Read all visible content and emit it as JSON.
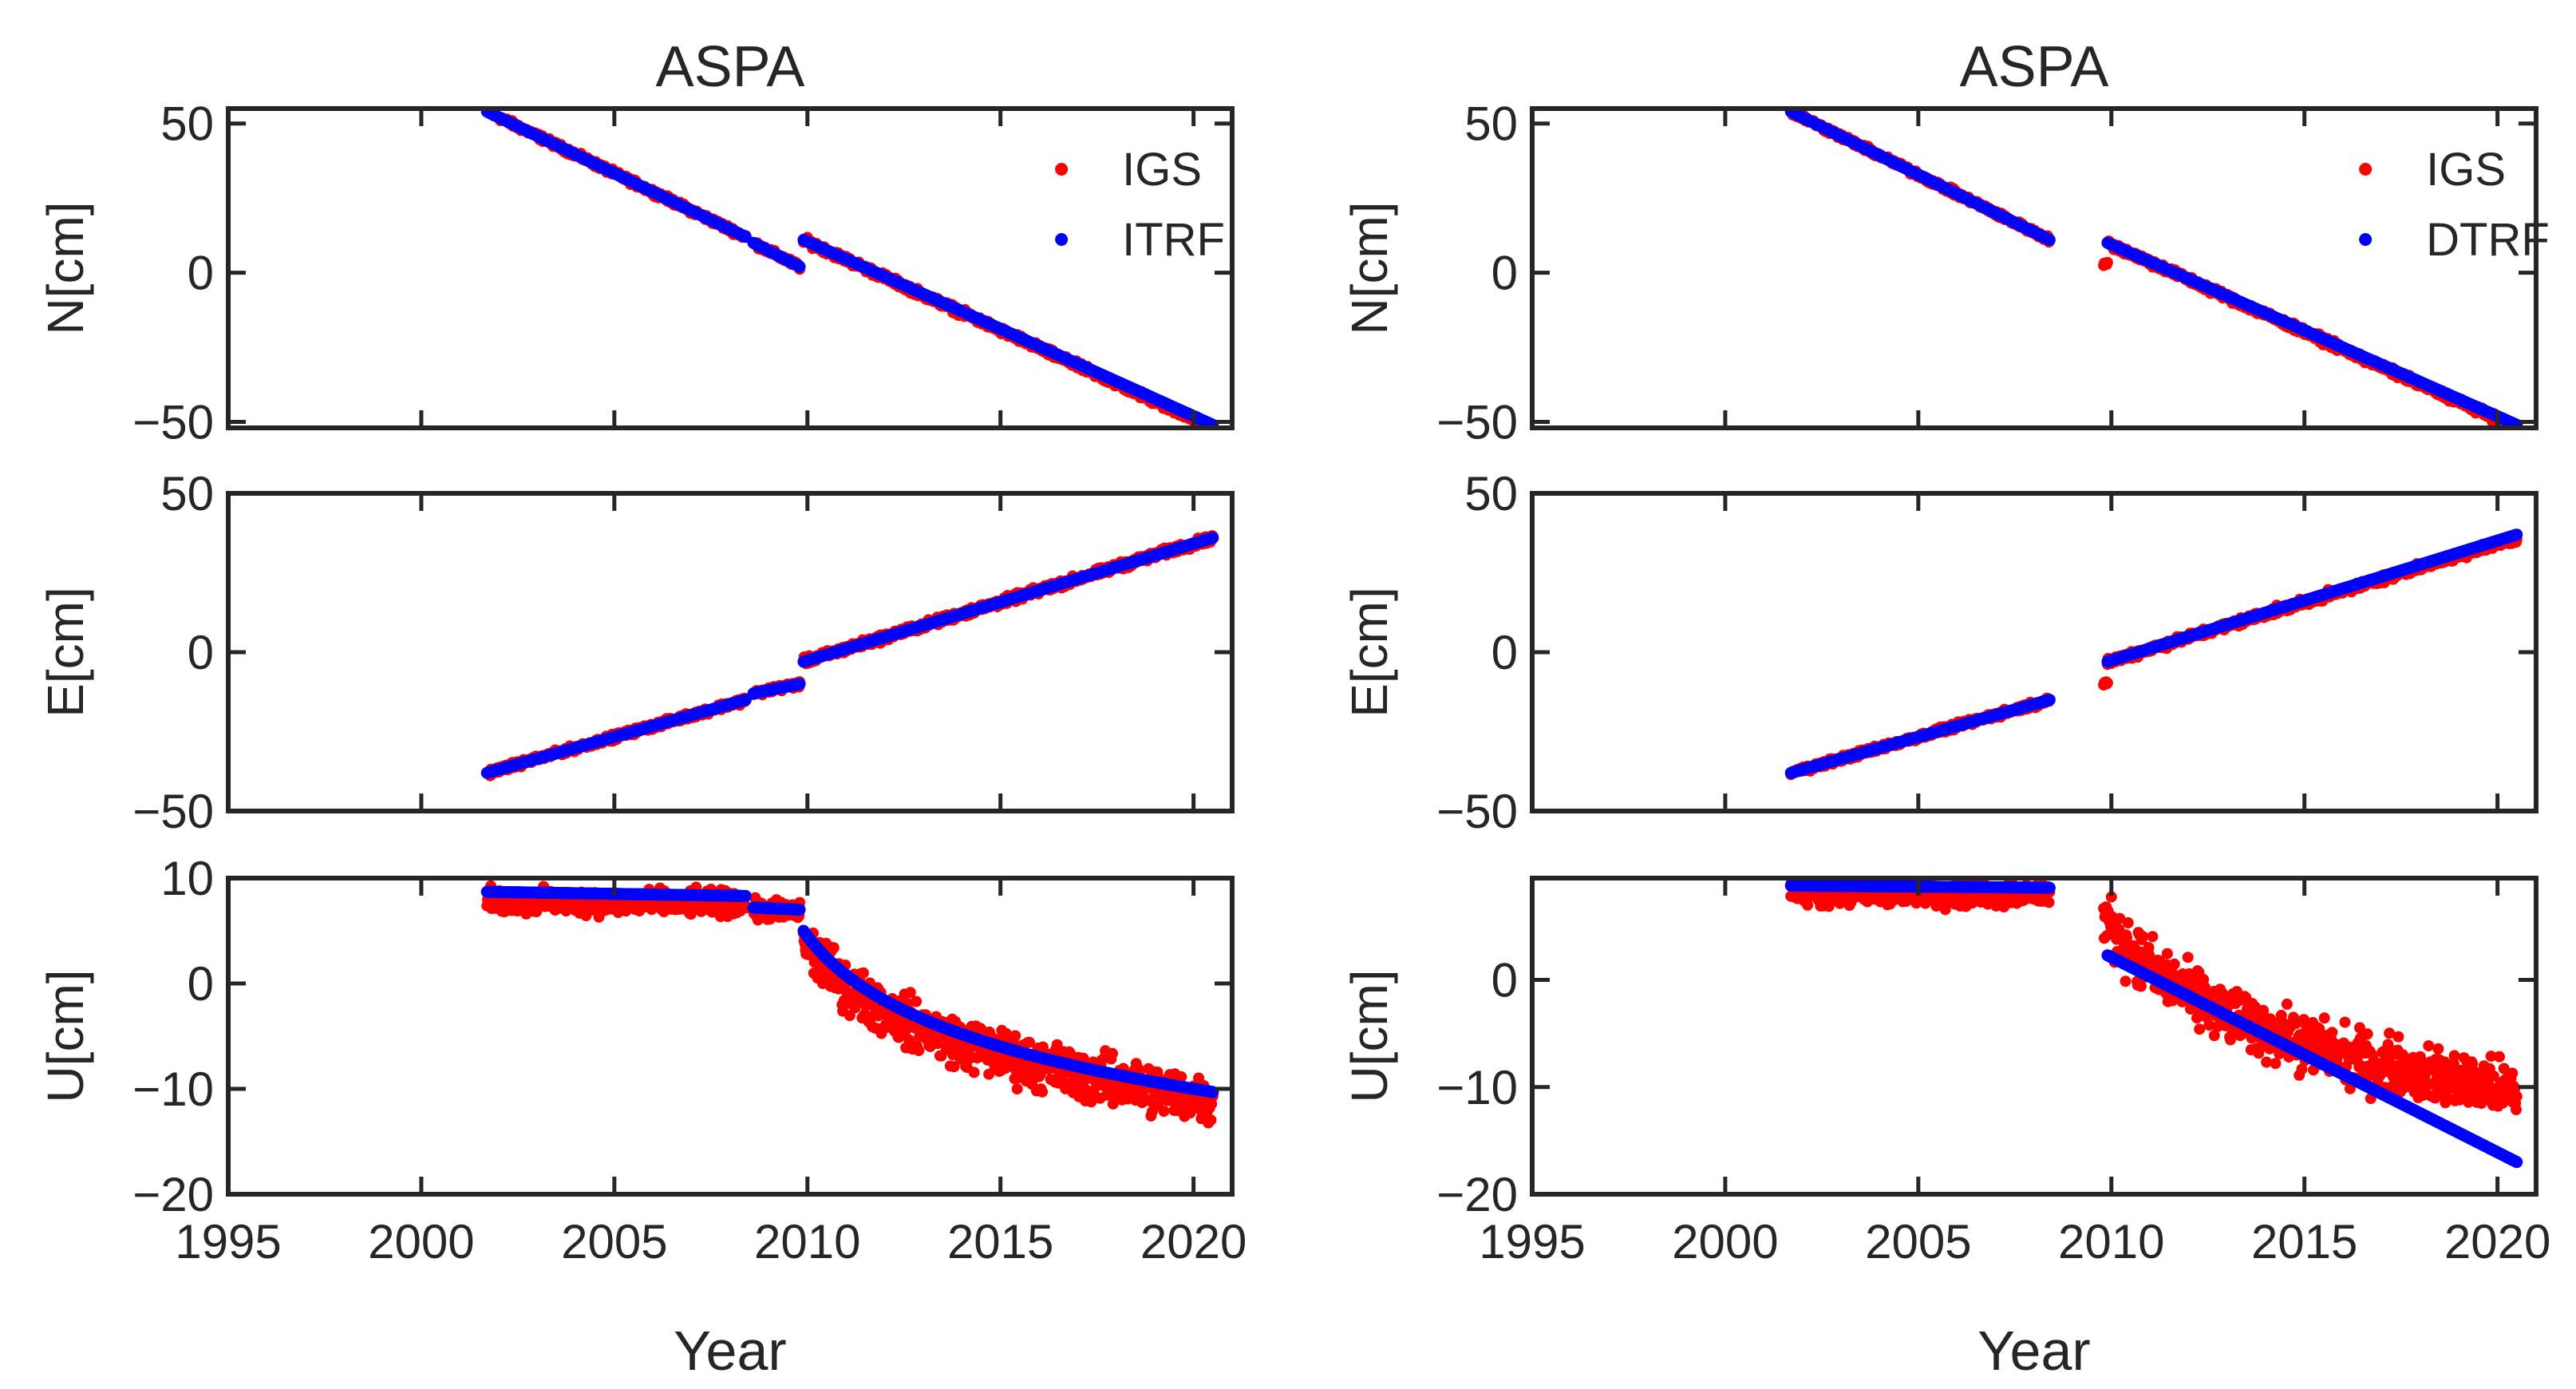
{
  "chart_data": [
    {
      "type": "scatter",
      "title": "ASPA",
      "xlabel": "Year",
      "xlim": [
        1995,
        2021
      ],
      "xticks": [
        "1995",
        "2000",
        "2005",
        "2010",
        "2015",
        "2020"
      ],
      "legend": {
        "position": "top-right",
        "entries": [
          "IGS",
          "ITRF"
        ]
      },
      "colors": {
        "IGS": "#ff0000",
        "ITRF": "#0000ff"
      },
      "subplots": [
        {
          "ylabel": "N[cm]",
          "ylim": [
            -52,
            55
          ],
          "yticks": [
            "50",
            "0",
            "−50"
          ],
          "ytick_values": [
            50,
            0,
            -50
          ],
          "series": [
            {
              "name": "IGS",
              "segments": [
                {
                  "x": [
                    2001.7,
                    2008.4
                  ],
                  "y": [
                    54,
                    12
                  ],
                  "noise": 0.8
                },
                {
                  "x": [
                    2008.6,
                    2009.8
                  ],
                  "y": [
                    10,
                    2
                  ],
                  "noise": 0.8
                },
                {
                  "x": [
                    2009.9,
                    2020.5
                  ],
                  "y": [
                    11,
                    -52
                  ],
                  "noise": 1.0
                }
              ]
            },
            {
              "name": "ITRF",
              "segments": [
                {
                  "x": [
                    2001.7,
                    2008.4
                  ],
                  "y": [
                    54,
                    12
                  ],
                  "noise": 0
                },
                {
                  "x": [
                    2008.6,
                    2009.8
                  ],
                  "y": [
                    10,
                    2
                  ],
                  "noise": 0
                },
                {
                  "x": [
                    2009.9,
                    2020.5
                  ],
                  "y": [
                    11,
                    -51
                  ],
                  "noise": 0
                }
              ]
            }
          ]
        },
        {
          "ylabel": "E[cm]",
          "ylim": [
            -50,
            50
          ],
          "yticks": [
            "50",
            "0",
            "−50"
          ],
          "ytick_values": [
            50,
            0,
            -50
          ],
          "series": [
            {
              "name": "IGS",
              "segments": [
                {
                  "x": [
                    2001.7,
                    2008.4
                  ],
                  "y": [
                    -38,
                    -15
                  ],
                  "noise": 0.8
                },
                {
                  "x": [
                    2008.6,
                    2009.8
                  ],
                  "y": [
                    -13,
                    -10
                  ],
                  "noise": 0.8
                },
                {
                  "x": [
                    2009.9,
                    2020.5
                  ],
                  "y": [
                    -3,
                    36
                  ],
                  "noise": 1.0
                }
              ]
            },
            {
              "name": "ITRF",
              "segments": [
                {
                  "x": [
                    2001.7,
                    2008.4
                  ],
                  "y": [
                    -38,
                    -15
                  ],
                  "noise": 0
                },
                {
                  "x": [
                    2008.6,
                    2009.8
                  ],
                  "y": [
                    -13,
                    -10
                  ],
                  "noise": 0
                },
                {
                  "x": [
                    2009.9,
                    2020.5
                  ],
                  "y": [
                    -3,
                    36
                  ],
                  "noise": 0
                }
              ]
            }
          ]
        },
        {
          "ylabel": "U[cm]",
          "ylim": [
            -20,
            10
          ],
          "yticks": [
            "10",
            "0",
            "−10",
            "−20"
          ],
          "ytick_values": [
            10,
            0,
            -10,
            -20
          ],
          "series": [
            {
              "name": "IGS",
              "segments": [
                {
                  "x": [
                    2001.7,
                    2008.4
                  ],
                  "y": [
                    7.8,
                    7.6
                  ],
                  "noise": 1.0
                },
                {
                  "x": [
                    2008.6,
                    2009.8
                  ],
                  "y": [
                    7,
                    6.8
                  ],
                  "noise": 0.8
                },
                {
                  "x": [
                    2009.9,
                    2020.5
                  ],
                  "y": [
                    4,
                    -11
                  ],
                  "curve": "log",
                  "noise": 2.0
                }
              ]
            },
            {
              "name": "ITRF",
              "segments": [
                {
                  "x": [
                    2001.7,
                    2008.4
                  ],
                  "y": [
                    8.7,
                    8.3
                  ],
                  "noise": 0
                },
                {
                  "x": [
                    2008.6,
                    2009.8
                  ],
                  "y": [
                    7.2,
                    7.0
                  ],
                  "noise": 0
                },
                {
                  "x": [
                    2009.9,
                    2020.5
                  ],
                  "y": [
                    5,
                    -10.3
                  ],
                  "curve": "log",
                  "noise": 0
                }
              ]
            }
          ]
        }
      ]
    },
    {
      "type": "scatter",
      "title": "ASPA",
      "xlabel": "Year",
      "xlim": [
        1995,
        2021
      ],
      "xticks": [
        "1995",
        "2000",
        "2005",
        "2010",
        "2015",
        "2020"
      ],
      "legend": {
        "position": "top-right",
        "entries": [
          "IGS",
          "DTRF"
        ]
      },
      "colors": {
        "IGS": "#ff0000",
        "DTRF": "#0000ff"
      },
      "subplots": [
        {
          "ylabel": "N[cm]",
          "ylim": [
            -52,
            55
          ],
          "yticks": [
            "50",
            "0",
            "−50"
          ],
          "ytick_values": [
            50,
            0,
            -50
          ],
          "series": [
            {
              "name": "IGS",
              "segments": [
                {
                  "x": [
                    2001.7,
                    2008.4
                  ],
                  "y": [
                    54,
                    11
                  ],
                  "noise": 0.8
                },
                {
                  "x": [
                    2009.8,
                    2009.9
                  ],
                  "y": [
                    3,
                    3
                  ],
                  "noise": 0.5
                },
                {
                  "x": [
                    2009.9,
                    2020.5
                  ],
                  "y": [
                    10,
                    -52
                  ],
                  "noise": 1.0
                }
              ]
            },
            {
              "name": "DTRF",
              "segments": [
                {
                  "x": [
                    2001.7,
                    2008.4
                  ],
                  "y": [
                    54,
                    11
                  ],
                  "noise": 0
                },
                {
                  "x": [
                    2009.9,
                    2020.5
                  ],
                  "y": [
                    10,
                    -51
                  ],
                  "noise": 0
                }
              ]
            }
          ]
        },
        {
          "ylabel": "E[cm]",
          "ylim": [
            -50,
            50
          ],
          "yticks": [
            "50",
            "0",
            "−50"
          ],
          "ytick_values": [
            50,
            0,
            -50
          ],
          "series": [
            {
              "name": "IGS",
              "segments": [
                {
                  "x": [
                    2001.7,
                    2008.4
                  ],
                  "y": [
                    -38,
                    -15
                  ],
                  "noise": 0.8
                },
                {
                  "x": [
                    2009.8,
                    2009.9
                  ],
                  "y": [
                    -10,
                    -10
                  ],
                  "noise": 0.5
                },
                {
                  "x": [
                    2009.9,
                    2020.5
                  ],
                  "y": [
                    -3,
                    36
                  ],
                  "noise": 1.0
                }
              ]
            },
            {
              "name": "DTRF",
              "segments": [
                {
                  "x": [
                    2001.7,
                    2008.4
                  ],
                  "y": [
                    -38,
                    -15
                  ],
                  "noise": 0
                },
                {
                  "x": [
                    2009.9,
                    2020.5
                  ],
                  "y": [
                    -3,
                    37
                  ],
                  "noise": 0
                }
              ]
            }
          ]
        },
        {
          "ylabel": "U[cm]",
          "ylim": [
            -20,
            9.5
          ],
          "yticks": [
            "0",
            "−10",
            "−20"
          ],
          "ytick_values": [
            0,
            -10,
            -20
          ],
          "series": [
            {
              "name": "IGS",
              "segments": [
                {
                  "x": [
                    2001.7,
                    2008.4
                  ],
                  "y": [
                    8.2,
                    8.0
                  ],
                  "noise": 1.0
                },
                {
                  "x": [
                    2009.8,
                    2020.5
                  ],
                  "y": [
                    6,
                    -10.5
                  ],
                  "curve": "log",
                  "noise": 2.2
                }
              ]
            },
            {
              "name": "DTRF",
              "segments": [
                {
                  "x": [
                    2001.7,
                    2008.4
                  ],
                  "y": [
                    8.8,
                    8.6
                  ],
                  "noise": 0
                },
                {
                  "x": [
                    2009.9,
                    2020.5
                  ],
                  "y": [
                    2.3,
                    -17
                  ],
                  "noise": 0
                }
              ]
            }
          ]
        }
      ]
    }
  ]
}
